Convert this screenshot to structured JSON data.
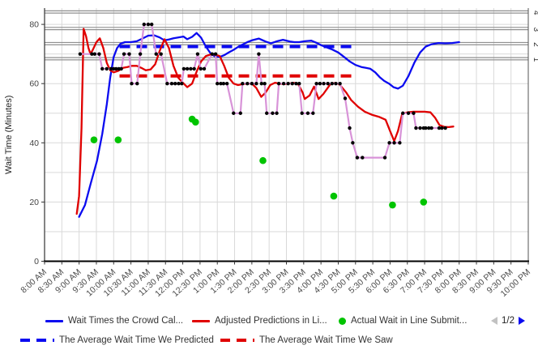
{
  "legend": {
    "row1": [
      {
        "label": "Wait Times the Crowd Cal...",
        "color": "#0b0bf0",
        "type": "solid-line"
      },
      {
        "label": "Adjusted Predictions in Li...",
        "color": "#e00000",
        "type": "solid-line"
      },
      {
        "label": "Actual Wait in Line Submit...",
        "color": "#00c400",
        "type": "dot"
      }
    ],
    "row2": [
      {
        "label": "The Average Wait Time We Predicted",
        "color": "#0b0bf0",
        "type": "dashed-line"
      },
      {
        "label": "The Average Wait Time We Saw",
        "color": "#e00000",
        "type": "dashed-line"
      }
    ],
    "pagination": {
      "label": "1/2"
    }
  },
  "chart_data": {
    "type": "line",
    "title": "",
    "xlabel": "",
    "ylabel": "Wait Time (Minutes)",
    "xlim": [
      8,
      22
    ],
    "ylim": [
      0,
      85.5
    ],
    "x_tick_labels": [
      "8:00 AM",
      "8:30 AM",
      "9:00 AM",
      "9:30 AM",
      "10:00 AM",
      "10:30 AM",
      "11:00 AM",
      "11:30 AM",
      "12:00 PM",
      "12:30 PM",
      "1:00 PM",
      "1:30 PM",
      "2:00 PM",
      "2:30 PM",
      "3:00 PM",
      "3:30 PM",
      "4:00 PM",
      "4:30 PM",
      "5:00 PM",
      "5:30 PM",
      "6:00 PM",
      "6:30 PM",
      "7:00 PM",
      "7:30 PM",
      "8:00 PM",
      "8:30 PM",
      "9:00 PM",
      "9:30 PM",
      "10:00 PM"
    ],
    "y_ticks": [
      0,
      20,
      40,
      60,
      80
    ],
    "y_gridline_step": 10,
    "grid": true,
    "legend_position": "bottom",
    "reference_lines": [
      {
        "label": "1",
        "value": 68.4
      },
      {
        "label": "2",
        "value": 73.5
      },
      {
        "label": "3",
        "value": 78.6
      },
      {
        "label": "4",
        "value": 84.2
      }
    ],
    "average_lines": [
      {
        "name": "The Average Wait Time We Predicted",
        "value": 72.5,
        "from": 10.17,
        "to": 17.0,
        "color": "#0b0bf0",
        "style": "dashed"
      },
      {
        "name": "The Average Wait Time We Saw",
        "value": 62.6,
        "from": 10.17,
        "to": 17.0,
        "color": "#e00000",
        "style": "dashed"
      }
    ],
    "series": [
      {
        "id": "crowd-calculated-wait",
        "legend_label": "Wait Times the Crowd Cal...",
        "style": "line",
        "color": "#0b0bf0",
        "points": [
          [
            9.0,
            15
          ],
          [
            9.17,
            19
          ],
          [
            9.33,
            26
          ],
          [
            9.52,
            34
          ],
          [
            9.67,
            43
          ],
          [
            9.8,
            53
          ],
          [
            9.9,
            62
          ],
          [
            10.0,
            69
          ],
          [
            10.1,
            72
          ],
          [
            10.2,
            73.5
          ],
          [
            10.33,
            74
          ],
          [
            10.5,
            74
          ],
          [
            10.67,
            74.3
          ],
          [
            10.83,
            75.2
          ],
          [
            11.0,
            76.2
          ],
          [
            11.17,
            76.3
          ],
          [
            11.33,
            75.6
          ],
          [
            11.47,
            74.6
          ],
          [
            11.6,
            74.9
          ],
          [
            11.73,
            75.3
          ],
          [
            11.87,
            75.6
          ],
          [
            12.02,
            75.9
          ],
          [
            12.13,
            75
          ],
          [
            12.27,
            75.8
          ],
          [
            12.4,
            77.1
          ],
          [
            12.53,
            75.5
          ],
          [
            12.67,
            72.5
          ],
          [
            12.8,
            70.3
          ],
          [
            12.93,
            69.2
          ],
          [
            13.07,
            69
          ],
          [
            13.2,
            69.6
          ],
          [
            13.33,
            70.5
          ],
          [
            13.47,
            71.4
          ],
          [
            13.6,
            72.4
          ],
          [
            13.73,
            73.2
          ],
          [
            13.87,
            74
          ],
          [
            14.0,
            74.6
          ],
          [
            14.2,
            75.2
          ],
          [
            14.4,
            74.2
          ],
          [
            14.55,
            73.6
          ],
          [
            14.7,
            74.2
          ],
          [
            14.9,
            74.8
          ],
          [
            15.1,
            74.2
          ],
          [
            15.23,
            74
          ],
          [
            15.37,
            74
          ],
          [
            15.53,
            74.3
          ],
          [
            15.72,
            74.5
          ],
          [
            15.87,
            73.8
          ],
          [
            16.0,
            73
          ],
          [
            16.17,
            72.2
          ],
          [
            16.33,
            71.5
          ],
          [
            16.5,
            70.5
          ],
          [
            16.67,
            69
          ],
          [
            16.83,
            67.5
          ],
          [
            17.0,
            66.3
          ],
          [
            17.17,
            65.6
          ],
          [
            17.3,
            65.3
          ],
          [
            17.43,
            65
          ],
          [
            17.57,
            63.8
          ],
          [
            17.7,
            62.2
          ],
          [
            17.83,
            60.9
          ],
          [
            17.97,
            60
          ],
          [
            18.1,
            58.8
          ],
          [
            18.23,
            58.3
          ],
          [
            18.37,
            59.3
          ],
          [
            18.53,
            62.5
          ],
          [
            18.7,
            67
          ],
          [
            18.87,
            70.5
          ],
          [
            19.03,
            72.5
          ],
          [
            19.2,
            73.3
          ],
          [
            19.4,
            73.7
          ],
          [
            19.6,
            73.6
          ],
          [
            19.8,
            73.7
          ],
          [
            20.0,
            74
          ]
        ]
      },
      {
        "id": "adjusted-predictions",
        "legend_label": "Adjusted Predictions in Li...",
        "style": "line",
        "color": "#e00000",
        "points": [
          [
            8.93,
            16
          ],
          [
            9.0,
            22
          ],
          [
            9.07,
            45
          ],
          [
            9.13,
            78.5
          ],
          [
            9.2,
            76
          ],
          [
            9.27,
            72
          ],
          [
            9.33,
            70
          ],
          [
            9.4,
            71.5
          ],
          [
            9.5,
            74
          ],
          [
            9.6,
            75.3
          ],
          [
            9.7,
            72
          ],
          [
            9.8,
            67
          ],
          [
            9.9,
            64.5
          ],
          [
            10.0,
            63.8
          ],
          [
            10.13,
            64.3
          ],
          [
            10.27,
            65.3
          ],
          [
            10.4,
            65.6
          ],
          [
            10.53,
            66
          ],
          [
            10.67,
            66
          ],
          [
            10.8,
            65.3
          ],
          [
            10.93,
            64.5
          ],
          [
            11.07,
            64.8
          ],
          [
            11.2,
            66.5
          ],
          [
            11.33,
            71
          ],
          [
            11.47,
            75
          ],
          [
            11.6,
            72
          ],
          [
            11.73,
            66
          ],
          [
            11.87,
            62
          ],
          [
            12.0,
            60.3
          ],
          [
            12.13,
            58.8
          ],
          [
            12.27,
            60
          ],
          [
            12.4,
            64
          ],
          [
            12.53,
            67.5
          ],
          [
            12.67,
            69.3
          ],
          [
            12.8,
            69.8
          ],
          [
            12.93,
            69.8
          ],
          [
            13.07,
            69.3
          ],
          [
            13.2,
            66
          ],
          [
            13.33,
            62
          ],
          [
            13.47,
            60
          ],
          [
            13.6,
            59.5
          ],
          [
            13.73,
            59.8
          ],
          [
            13.87,
            60
          ],
          [
            14.0,
            60
          ],
          [
            14.13,
            58.5
          ],
          [
            14.27,
            55.5
          ],
          [
            14.4,
            57
          ],
          [
            14.53,
            59.5
          ],
          [
            14.67,
            60.3
          ],
          [
            14.8,
            60
          ],
          [
            14.93,
            59.8
          ],
          [
            15.07,
            60
          ],
          [
            15.2,
            60.3
          ],
          [
            15.33,
            60
          ],
          [
            15.47,
            57
          ],
          [
            15.53,
            54.8
          ],
          [
            15.67,
            56
          ],
          [
            15.8,
            59
          ],
          [
            15.93,
            54.8
          ],
          [
            16.07,
            56.5
          ],
          [
            16.27,
            59.8
          ],
          [
            16.4,
            60.2
          ],
          [
            16.53,
            59.8
          ],
          [
            16.73,
            57
          ],
          [
            16.87,
            54.5
          ],
          [
            17.07,
            52.2
          ],
          [
            17.27,
            50.5
          ],
          [
            17.47,
            49.5
          ],
          [
            17.67,
            48.8
          ],
          [
            17.87,
            47.8
          ],
          [
            18.0,
            44
          ],
          [
            18.12,
            40.6
          ],
          [
            18.23,
            44
          ],
          [
            18.35,
            49.8
          ],
          [
            18.5,
            50.3
          ],
          [
            18.67,
            50.5
          ],
          [
            18.83,
            50.5
          ],
          [
            19.0,
            50.5
          ],
          [
            19.17,
            50.3
          ],
          [
            19.3,
            48.5
          ],
          [
            19.43,
            46
          ],
          [
            19.57,
            45.4
          ],
          [
            19.7,
            45.3
          ],
          [
            19.83,
            45.5
          ]
        ]
      },
      {
        "id": "posted-wait-dots",
        "legend_label": "",
        "style": "line+dots",
        "line_color": "#d893d8",
        "dot_color": "#000000",
        "points": [
          [
            9.03,
            70
          ],
          [
            9.37,
            70
          ],
          [
            9.45,
            70
          ],
          [
            9.58,
            70
          ],
          [
            9.67,
            65
          ],
          [
            9.8,
            65
          ],
          [
            9.92,
            65
          ],
          [
            10.0,
            65
          ],
          [
            10.07,
            65
          ],
          [
            10.15,
            65
          ],
          [
            10.22,
            65
          ],
          [
            10.3,
            70
          ],
          [
            10.45,
            70
          ],
          [
            10.52,
            60
          ],
          [
            10.68,
            60
          ],
          [
            10.77,
            70
          ],
          [
            10.88,
            80
          ],
          [
            11.0,
            80
          ],
          [
            11.1,
            80
          ],
          [
            11.23,
            70
          ],
          [
            11.37,
            70
          ],
          [
            11.55,
            60
          ],
          [
            11.68,
            60
          ],
          [
            11.78,
            60
          ],
          [
            11.88,
            60
          ],
          [
            11.97,
            60
          ],
          [
            12.03,
            65
          ],
          [
            12.13,
            65
          ],
          [
            12.23,
            65
          ],
          [
            12.33,
            65
          ],
          [
            12.43,
            70
          ],
          [
            12.52,
            65
          ],
          [
            12.62,
            65
          ],
          [
            12.85,
            70
          ],
          [
            12.95,
            70
          ],
          [
            13.0,
            60
          ],
          [
            13.1,
            60
          ],
          [
            13.18,
            60
          ],
          [
            13.28,
            60
          ],
          [
            13.47,
            50
          ],
          [
            13.67,
            50
          ],
          [
            13.73,
            60
          ],
          [
            13.87,
            60
          ],
          [
            14.0,
            60
          ],
          [
            14.13,
            60
          ],
          [
            14.2,
            70
          ],
          [
            14.28,
            60
          ],
          [
            14.37,
            60
          ],
          [
            14.43,
            50
          ],
          [
            14.6,
            50
          ],
          [
            14.72,
            50
          ],
          [
            14.78,
            60
          ],
          [
            14.92,
            60
          ],
          [
            15.05,
            60
          ],
          [
            15.17,
            60
          ],
          [
            15.28,
            60
          ],
          [
            15.37,
            60
          ],
          [
            15.45,
            50
          ],
          [
            15.62,
            50
          ],
          [
            15.77,
            50
          ],
          [
            15.87,
            60
          ],
          [
            15.97,
            60
          ],
          [
            16.08,
            60
          ],
          [
            16.2,
            60
          ],
          [
            16.32,
            60
          ],
          [
            16.43,
            60
          ],
          [
            16.55,
            60
          ],
          [
            16.7,
            55
          ],
          [
            16.83,
            45
          ],
          [
            16.92,
            40
          ],
          [
            17.05,
            35
          ],
          [
            17.2,
            35
          ],
          [
            17.85,
            35
          ],
          [
            17.98,
            40
          ],
          [
            18.12,
            40
          ],
          [
            18.28,
            40
          ],
          [
            18.37,
            50
          ],
          [
            18.53,
            50
          ],
          [
            18.68,
            50
          ],
          [
            18.75,
            45
          ],
          [
            18.87,
            45
          ],
          [
            18.97,
            45
          ],
          [
            19.03,
            45
          ],
          [
            19.12,
            45
          ],
          [
            19.2,
            45
          ],
          [
            19.42,
            45
          ],
          [
            19.5,
            45
          ],
          [
            19.6,
            45
          ]
        ]
      },
      {
        "id": "actual-wait-submitted",
        "legend_label": "Actual Wait in Line Submit...",
        "style": "dots",
        "color": "#00c400",
        "points": [
          [
            9.43,
            41
          ],
          [
            10.13,
            41
          ],
          [
            12.27,
            48
          ],
          [
            12.37,
            47
          ],
          [
            14.32,
            34
          ],
          [
            16.37,
            22
          ],
          [
            18.07,
            19
          ],
          [
            18.97,
            20
          ]
        ]
      }
    ]
  }
}
